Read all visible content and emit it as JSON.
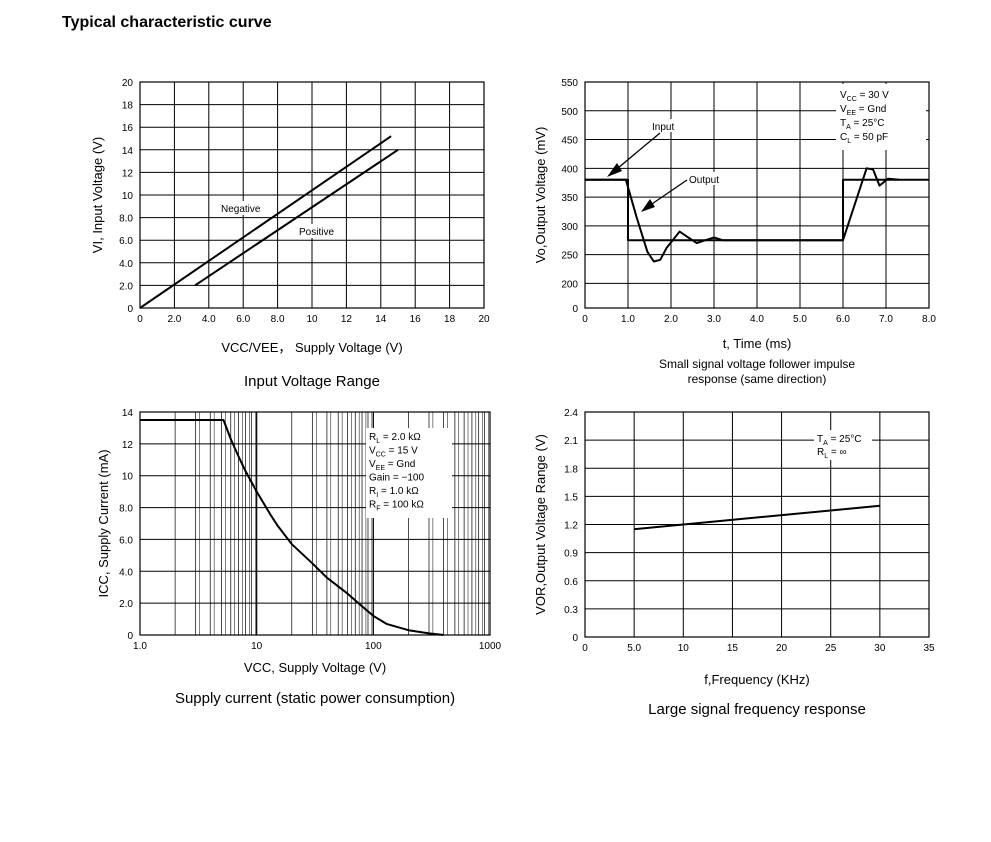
{
  "page": {
    "title": "Typical characteristic curve"
  },
  "chart_data": [
    {
      "type": "line",
      "caption": "Input Voltage Range",
      "xlabel": "VCC/VEE， Supply Voltage (V)",
      "ylabel": "VI, Input Voltage (V)",
      "xlim": [
        0,
        20
      ],
      "ylim": [
        0,
        20
      ],
      "x_ticks": [
        "0",
        "2.0",
        "4.0",
        "6.0",
        "8.0",
        "10",
        "12",
        "14",
        "16",
        "18",
        "20"
      ],
      "y_ticks": [
        "0",
        "2.0",
        "4.0",
        "6.0",
        "8.0",
        "10",
        "12",
        "14",
        "16",
        "18",
        "20"
      ],
      "grid": true,
      "series": [
        {
          "name": "Negative",
          "points": [
            [
              0,
              0
            ],
            [
              14.6,
              15.2
            ]
          ]
        },
        {
          "name": "Positive",
          "points": [
            [
              3.2,
              2.0
            ],
            [
              15.0,
              14.0
            ]
          ]
        }
      ]
    },
    {
      "type": "line",
      "caption": "Small signal voltage follower impulse response (same direction)",
      "xlabel": "t, Time (ms)",
      "ylabel": "Vo,Output Voltage (mV)",
      "xlim": [
        0,
        8
      ],
      "ylim": [
        0,
        550
      ],
      "x_ticks": [
        "0",
        "1.0",
        "2.0",
        "3.0",
        "4.0",
        "5.0",
        "6.0",
        "7.0",
        "8.0"
      ],
      "y_ticks": [
        "0",
        "200",
        "250",
        "300",
        "350",
        "400",
        "450",
        "500",
        "550"
      ],
      "grid": true,
      "legend_position": "top-right",
      "annotations": [
        "V_CC = 30 V",
        "V_EE = Gnd",
        "T_A = 25°C",
        "C_L = 50 pF",
        "Input",
        "Output"
      ],
      "series": [
        {
          "name": "Input",
          "points": [
            [
              0,
              380
            ],
            [
              1.0,
              380
            ],
            [
              1.0,
              275
            ],
            [
              6.0,
              275
            ],
            [
              6.0,
              380
            ],
            [
              8.0,
              380
            ]
          ]
        },
        {
          "name": "Output",
          "points": [
            [
              0,
              380
            ],
            [
              0.95,
              380
            ],
            [
              1.2,
              315
            ],
            [
              1.45,
              255
            ],
            [
              1.6,
              238
            ],
            [
              1.75,
              241
            ],
            [
              1.9,
              262
            ],
            [
              2.2,
              290
            ],
            [
              2.4,
              280
            ],
            [
              2.6,
              270
            ],
            [
              2.8,
              275
            ],
            [
              3.0,
              280
            ],
            [
              3.2,
              275
            ],
            [
              6.0,
              275
            ],
            [
              6.55,
              400
            ],
            [
              6.7,
              398
            ],
            [
              6.85,
              370
            ],
            [
              7.05,
              382
            ],
            [
              7.3,
              380
            ]
          ]
        }
      ]
    },
    {
      "type": "line",
      "caption": "Supply current (static power consumption)",
      "xlabel": "VCC, Supply Voltage (V)",
      "ylabel": "ICC,  Supply Current (mA)",
      "xscale": "log",
      "xlim": [
        1,
        1000
      ],
      "ylim": [
        0,
        14
      ],
      "x_ticks": [
        "1.0",
        "10",
        "100",
        "1000"
      ],
      "y_ticks": [
        "0",
        "2.0",
        "4.0",
        "6.0",
        "8.0",
        "10",
        "12",
        "14"
      ],
      "grid": true,
      "legend_position": "top-right",
      "annotations": [
        "R_L = 2.0 kΩ",
        "V_CC = 15 V",
        "V_EE = Gnd",
        "Gain = −100",
        "R_I = 1.0 kΩ",
        "R_F = 100 kΩ"
      ],
      "series": [
        {
          "points": [
            [
              1,
              13.5
            ],
            [
              5.2,
              13.5
            ],
            [
              6,
              12.3
            ],
            [
              7,
              11.2
            ],
            [
              8,
              10.3
            ],
            [
              10,
              9.0
            ],
            [
              13,
              7.6
            ],
            [
              15,
              6.9
            ],
            [
              20,
              5.7
            ],
            [
              30,
              4.5
            ],
            [
              40,
              3.6
            ],
            [
              60,
              2.6
            ],
            [
              80,
              1.8
            ],
            [
              100,
              1.2
            ],
            [
              130,
              0.7
            ],
            [
              200,
              0.3
            ],
            [
              300,
              0.1
            ],
            [
              400,
              0.0
            ]
          ]
        }
      ]
    },
    {
      "type": "line",
      "caption": "Large signal frequency response",
      "xlabel": "f,Frequency (KHz)",
      "ylabel": "VOR,Output Voltage Range (V)",
      "xlim": [
        0,
        35
      ],
      "ylim": [
        0,
        2.4
      ],
      "x_ticks": [
        "0",
        "5.0",
        "10",
        "15",
        "20",
        "25",
        "30",
        "35"
      ],
      "y_ticks": [
        "0",
        "0.3",
        "0.6",
        "0.9",
        "1.2",
        "1.5",
        "1.8",
        "2.1",
        "2.4"
      ],
      "grid": true,
      "legend_position": "top-right",
      "annotations": [
        "T_A = 25°C",
        "R_L = ∞"
      ],
      "series": [
        {
          "points": [
            [
              5,
              1.15
            ],
            [
              30,
              1.4
            ]
          ]
        }
      ]
    }
  ]
}
